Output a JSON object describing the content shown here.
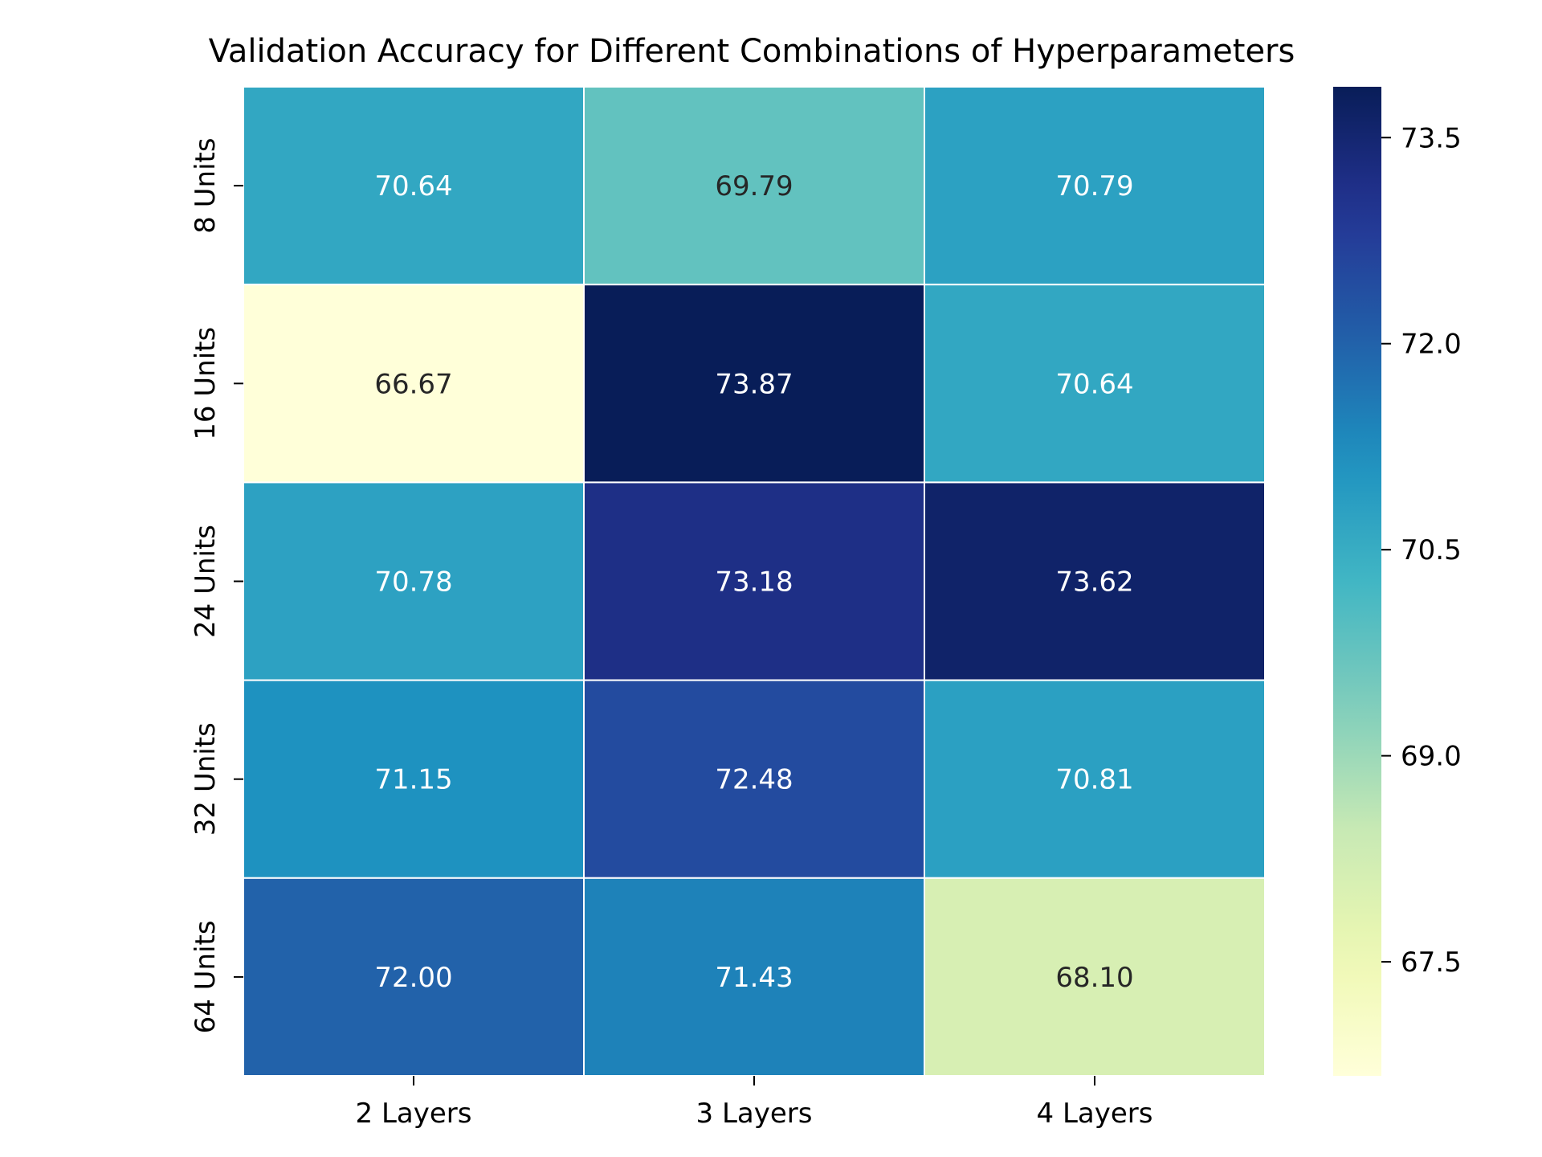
{
  "chart_data": {
    "type": "heatmap",
    "title": "Validation Accuracy for Different Combinations of Hyperparameters",
    "x_categories": [
      "2 Layers",
      "3 Layers",
      "4 Layers"
    ],
    "y_categories": [
      "8 Units",
      "16 Units",
      "24 Units",
      "32 Units",
      "64 Units"
    ],
    "values": [
      [
        70.64,
        69.79,
        70.79
      ],
      [
        66.67,
        73.87,
        70.64
      ],
      [
        70.78,
        73.18,
        73.62
      ],
      [
        71.15,
        72.48,
        70.81
      ],
      [
        72.0,
        71.43,
        68.1
      ]
    ],
    "value_labels": [
      [
        "70.64",
        "69.79",
        "70.79"
      ],
      [
        "66.67",
        "73.87",
        "70.64"
      ],
      [
        "70.78",
        "73.18",
        "73.62"
      ],
      [
        "71.15",
        "72.48",
        "70.81"
      ],
      [
        "72.00",
        "71.43",
        "68.10"
      ]
    ],
    "colorbar": {
      "range": [
        66.67,
        73.87
      ],
      "ticks": [
        67.5,
        69.0,
        70.5,
        72.0,
        73.5
      ],
      "tick_labels": [
        "67.5",
        "69.0",
        "70.5",
        "72.0",
        "73.5"
      ],
      "colormap": "YlGnBu"
    },
    "colors": {
      "cell_border": "#ffffff",
      "text_light": "#ffffff",
      "text_dark": "#262626"
    },
    "xlabel": "",
    "ylabel": ""
  }
}
